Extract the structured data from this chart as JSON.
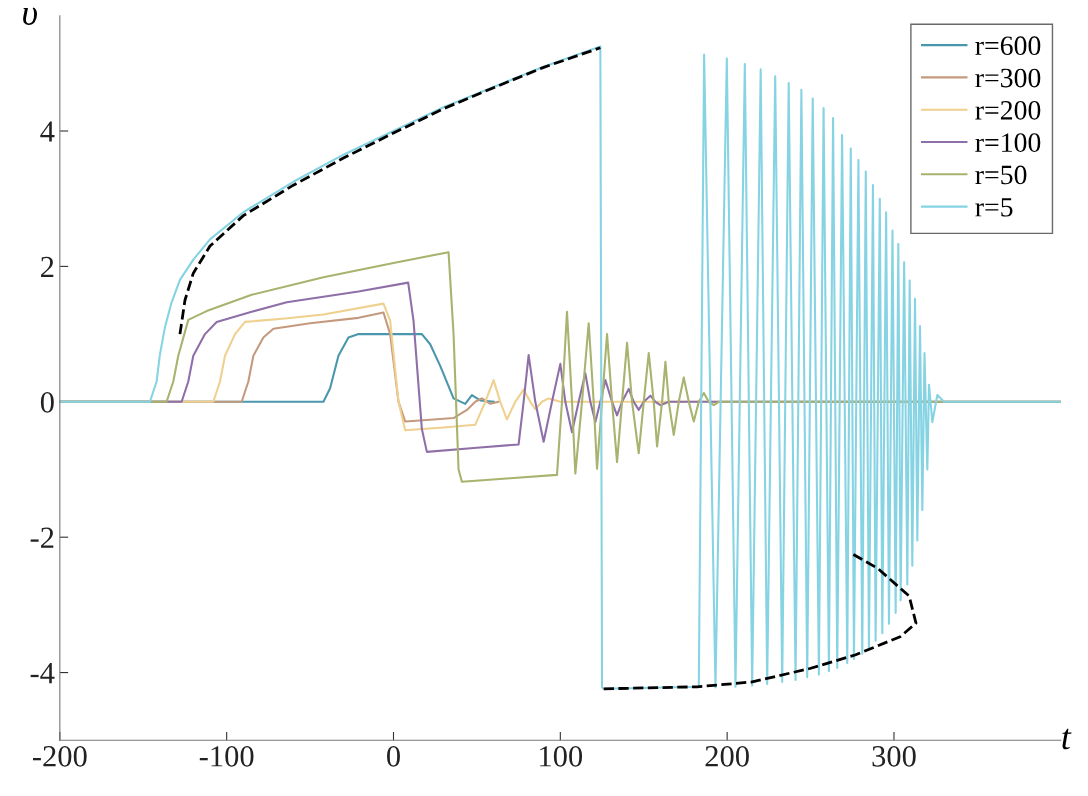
{
  "chart_data": {
    "type": "line",
    "xlabel": "t",
    "ylabel": "υ",
    "xlim": [
      -200,
      400
    ],
    "ylim": [
      -5,
      5.7
    ],
    "xticks": [
      -200,
      -100,
      0,
      100,
      200,
      300
    ],
    "yticks": [
      -4,
      -2,
      0,
      2,
      4
    ],
    "grid": false,
    "legend": "top right",
    "line_style": "solid",
    "series": [
      {
        "name": "r=600",
        "color": "#4a97ad",
        "x": [
          -200,
          -42,
          -38,
          -33,
          -27,
          -21,
          17,
          22,
          28,
          36,
          43,
          47,
          52,
          60
        ],
        "values": [
          0,
          0,
          0.2,
          0.68,
          0.95,
          1.0,
          1.0,
          0.85,
          0.53,
          0.05,
          -0.03,
          0.1,
          0.02,
          0
        ]
      },
      {
        "name": "r=300",
        "color": "#c49a7f",
        "x": [
          -200,
          -91,
          -87,
          -84,
          -78,
          -72,
          -50,
          -21,
          -6,
          -2,
          3,
          7,
          20,
          36,
          44,
          49,
          53,
          58,
          63
        ],
        "values": [
          0,
          0,
          0.3,
          0.68,
          0.95,
          1.08,
          1.16,
          1.24,
          1.32,
          1.0,
          0.0,
          -0.29,
          -0.27,
          -0.24,
          -0.12,
          0,
          0.05,
          -0.03,
          0
        ]
      },
      {
        "name": "r=200",
        "color": "#efd08f",
        "x": [
          -200,
          -108,
          -104,
          -101,
          -95,
          -89,
          -65,
          -42,
          -6,
          -2,
          3,
          7,
          30,
          49,
          55,
          60,
          64,
          68,
          73,
          78,
          82,
          85,
          89,
          93,
          100,
          130,
          400
        ],
        "values": [
          0,
          0,
          0.3,
          0.68,
          1.0,
          1.18,
          1.23,
          1.29,
          1.45,
          1.2,
          0.0,
          -0.42,
          -0.38,
          -0.34,
          0,
          0.32,
          0,
          -0.26,
          0,
          0.18,
          0,
          -0.11,
          0,
          0.05,
          0,
          0,
          0
        ]
      },
      {
        "name": "r=100",
        "color": "#8f6fa8",
        "x": [
          -200,
          -127,
          -123,
          -120,
          -113,
          -106,
          -85,
          -64,
          -21,
          8.8,
          12,
          17,
          20,
          50,
          75,
          78,
          81,
          85,
          90,
          95,
          100,
          103,
          107,
          111,
          115,
          118,
          121,
          124,
          127,
          131,
          134,
          137,
          141,
          144,
          147,
          150,
          154,
          157,
          160,
          165,
          170,
          400
        ],
        "values": [
          0,
          0,
          0.3,
          0.68,
          1.0,
          1.18,
          1.33,
          1.47,
          1.63,
          1.76,
          1.2,
          -0.4,
          -0.74,
          -0.68,
          -0.63,
          0,
          0.69,
          0,
          -0.59,
          0,
          0.56,
          0,
          -0.45,
          0,
          0.42,
          0,
          -0.3,
          0,
          0.32,
          0,
          -0.2,
          0,
          0.19,
          0,
          -0.12,
          0,
          0.09,
          0,
          -0.05,
          0,
          0,
          0
        ]
      },
      {
        "name": "r=50",
        "color": "#a7b36e",
        "x": [
          -200,
          -136,
          -132,
          -129,
          -123,
          -112,
          -85,
          -42,
          0,
          33,
          36,
          39,
          41,
          70,
          98,
          101,
          104,
          107,
          109,
          113,
          117,
          120,
          122,
          125,
          128,
          131,
          134,
          137,
          140,
          143,
          147,
          150,
          153,
          156,
          158,
          161,
          163,
          165,
          168,
          171,
          174,
          177,
          180,
          183,
          186,
          189,
          192,
          195,
          198,
          204,
          210,
          400
        ],
        "values": [
          0,
          0,
          0.3,
          0.68,
          1.21,
          1.34,
          1.58,
          1.84,
          2.05,
          2.21,
          1.0,
          -1.0,
          -1.18,
          -1.13,
          -1.08,
          0,
          1.33,
          0,
          -1.06,
          0,
          1.16,
          0,
          -0.99,
          0,
          1.0,
          0,
          -0.89,
          0,
          0.87,
          0,
          -0.76,
          0,
          0.72,
          0,
          -0.66,
          0,
          0.59,
          0,
          -0.49,
          0,
          0.36,
          0,
          -0.29,
          0,
          0.13,
          0,
          -0.05,
          0,
          0,
          0,
          0,
          0
        ]
      },
      {
        "name": "r=5",
        "color": "#86d3e3",
        "x": [
          -200,
          -146,
          -142,
          -140,
          -137,
          -133,
          -128,
          -120,
          -110,
          -90,
          -60,
          -30,
          0,
          30,
          60,
          90,
          124,
          125,
          126,
          183,
          186.2,
          193,
          199.8,
          205,
          210.6,
          215,
          220.1,
          224,
          228.8,
          233,
          236.9,
          241,
          244.5,
          248,
          251.3,
          255,
          257.8,
          261,
          263.5,
          266,
          268.9,
          272,
          274.1,
          276,
          278.7,
          281,
          283.1,
          285,
          287.4,
          289,
          291.5,
          293,
          295.3,
          297,
          299.1,
          301,
          302.6,
          304,
          306.1,
          308,
          309.4,
          311,
          312.6,
          314,
          315.6,
          317,
          318.3,
          320,
          321,
          323,
          326,
          330,
          400
        ],
        "values": [
          0,
          0,
          0.3,
          0.7,
          1.1,
          1.47,
          1.8,
          2.1,
          2.4,
          2.8,
          3.25,
          3.65,
          4.0,
          4.35,
          4.65,
          4.95,
          5.25,
          -4.22,
          -4.24,
          -4.21,
          5.13,
          -4.22,
          5.07,
          -4.21,
          4.99,
          -4.19,
          4.91,
          -4.17,
          4.81,
          -4.14,
          4.71,
          -4.11,
          4.61,
          -4.07,
          4.48,
          -4.03,
          4.34,
          -3.98,
          4.19,
          -3.93,
          3.94,
          -3.86,
          3.74,
          -3.8,
          3.57,
          -3.72,
          3.4,
          -3.63,
          3.2,
          -3.53,
          3.0,
          -3.42,
          2.8,
          -3.28,
          2.53,
          -3.12,
          2.33,
          -2.93,
          2.06,
          -2.7,
          1.79,
          -2.42,
          1.52,
          -2.05,
          1.12,
          -1.6,
          0.72,
          -1.0,
          0.25,
          -0.3,
          0.1,
          0,
          0
        ]
      },
      {
        "color": "#000000",
        "line_style": "dashed",
        "x": [
          -128,
          -125,
          -120,
          -110,
          -90,
          -60,
          -30,
          0,
          30,
          60,
          90,
          124
        ],
        "values": [
          1.0,
          1.5,
          1.9,
          2.3,
          2.75,
          3.2,
          3.6,
          3.97,
          4.33,
          4.64,
          4.94,
          5.23
        ]
      },
      {
        "color": "#000000",
        "line_style": "dashed",
        "x": [
          126,
          182,
          214.4,
          249.6,
          276.7,
          303.7,
          313.2,
          309.1,
          290.2,
          275.3
        ],
        "values": [
          -4.24,
          -4.21,
          -4.14,
          -3.94,
          -3.74,
          -3.47,
          -3.27,
          -2.87,
          -2.46,
          -2.25
        ]
      }
    ]
  }
}
